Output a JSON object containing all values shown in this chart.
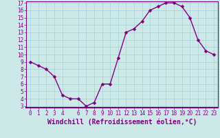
{
  "x": [
    0,
    1,
    2,
    3,
    4,
    5,
    6,
    7,
    8,
    9,
    10,
    11,
    12,
    13,
    14,
    15,
    16,
    17,
    18,
    19,
    20,
    21,
    22,
    23
  ],
  "y": [
    9,
    8.5,
    8,
    7,
    4.5,
    4,
    4,
    3,
    3.5,
    6,
    6,
    9.5,
    13,
    13.5,
    14.5,
    16,
    16.5,
    17,
    17,
    16.5,
    15,
    12,
    10.5,
    10
  ],
  "line_color": "#800080",
  "marker_color": "#800080",
  "bg_color": "#cce8e8",
  "grid_color": "#aad4d4",
  "xlabel": "Windchill (Refroidissement éolien,°C)",
  "xlabel_color": "#800080",
  "ylim": [
    3,
    17
  ],
  "xlim": [
    -0.5,
    23.5
  ],
  "yticks": [
    3,
    4,
    5,
    6,
    7,
    8,
    9,
    10,
    11,
    12,
    13,
    14,
    15,
    16,
    17
  ],
  "xticks": [
    0,
    1,
    2,
    3,
    4,
    6,
    7,
    8,
    9,
    10,
    11,
    12,
    13,
    14,
    15,
    16,
    17,
    18,
    19,
    20,
    21,
    22,
    23
  ],
  "tick_color": "#800080",
  "tick_fontsize": 5.5,
  "xlabel_fontsize": 7.0,
  "line_width": 1.0,
  "marker_size": 2.5
}
